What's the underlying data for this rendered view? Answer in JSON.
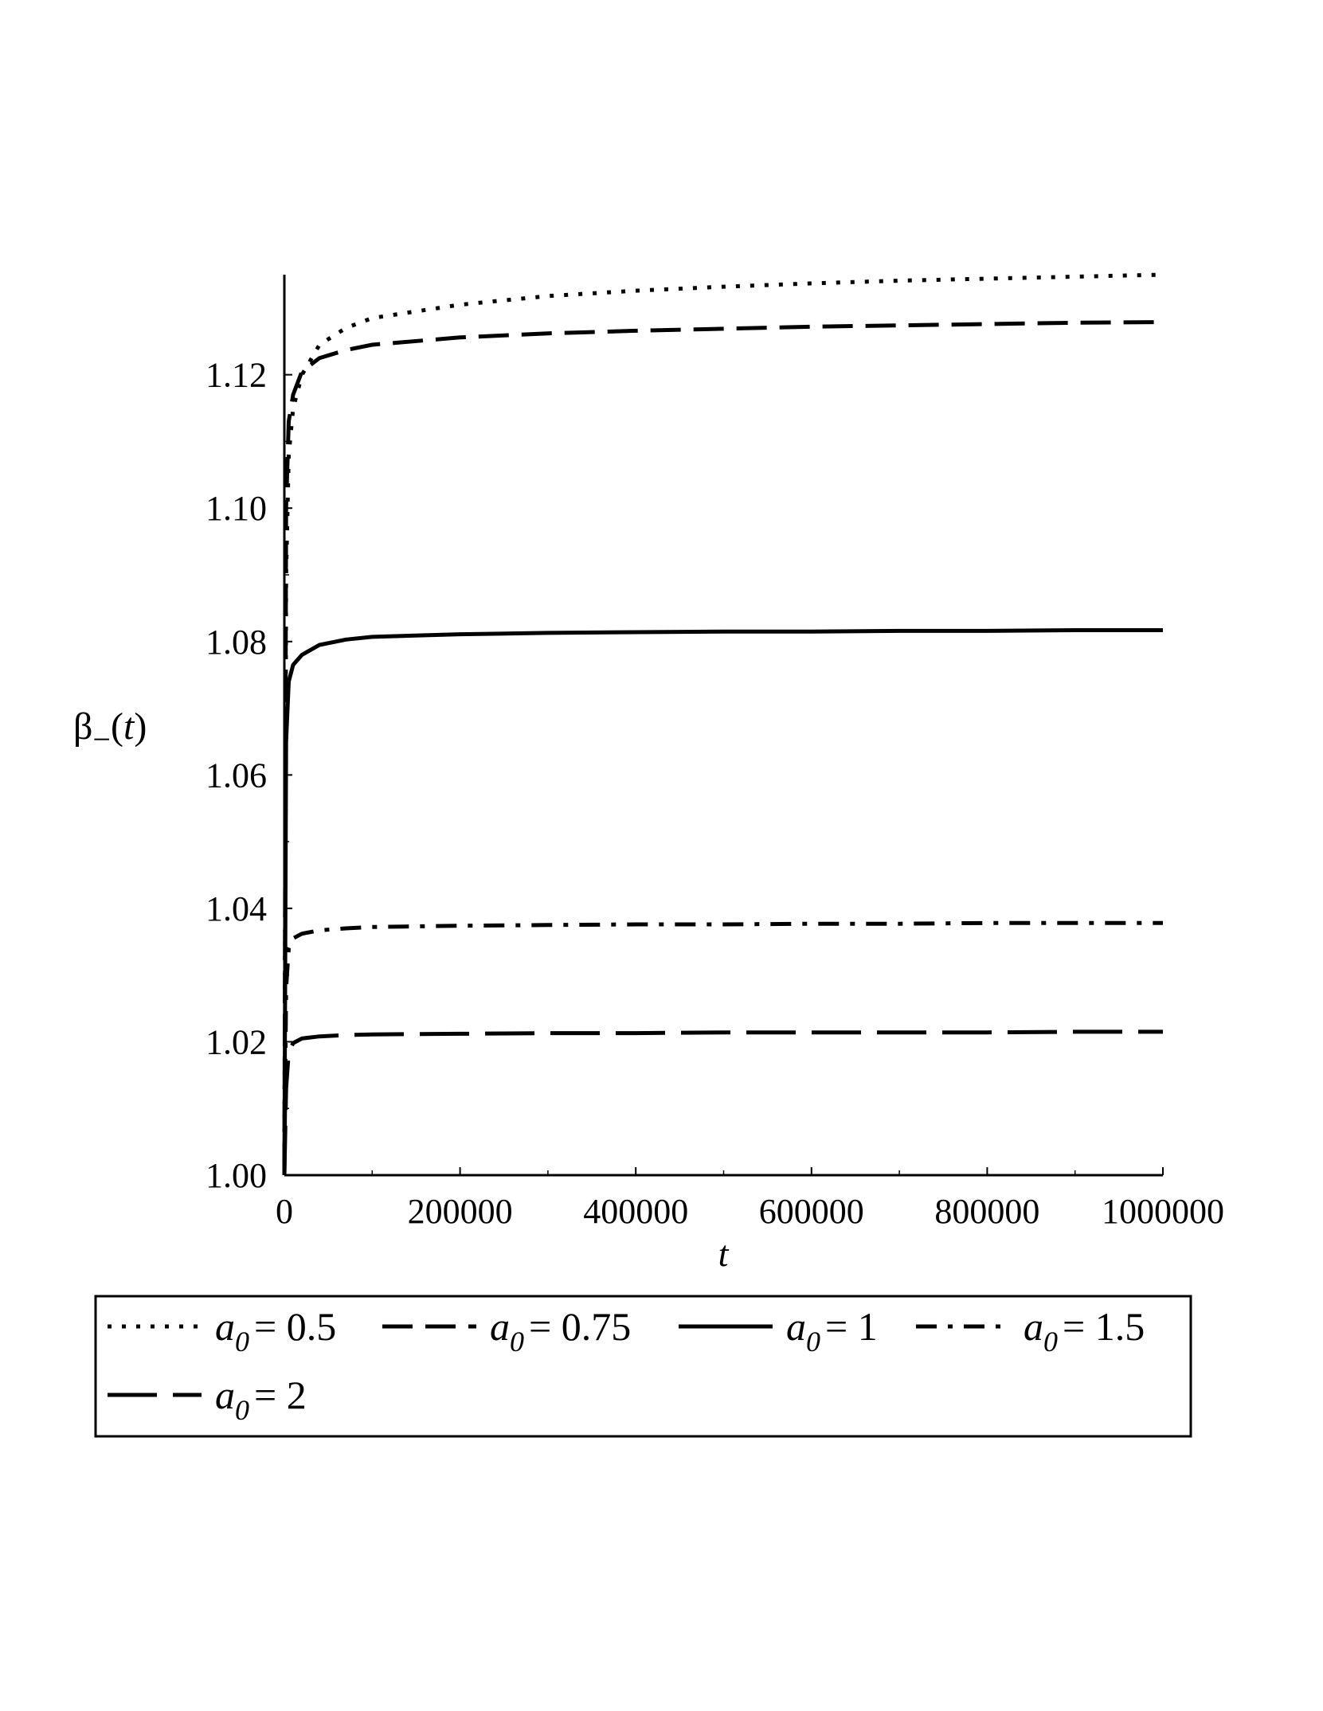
{
  "chart_data": {
    "type": "line",
    "xlabel": "t",
    "ylabel": "β₋(t)",
    "xlim": [
      0,
      1000000
    ],
    "ylim": [
      1.0,
      1.135
    ],
    "xticks": [
      0,
      200000,
      400000,
      600000,
      800000,
      1000000
    ],
    "xtick_labels": [
      "0",
      "200000",
      "400000",
      "600000",
      "800000",
      "1000000"
    ],
    "yticks": [
      1.0,
      1.02,
      1.04,
      1.06,
      1.08,
      1.1,
      1.12
    ],
    "ytick_labels": [
      "1.00",
      "1.02",
      "1.04",
      "1.06",
      "1.08",
      "1.10",
      "1.12"
    ],
    "legend_position": "bottom",
    "series": [
      {
        "name": "a0 = 0.5",
        "label_var": "a",
        "label_sub": "0",
        "label_value": "= 0.5",
        "style": "dotted",
        "x": [
          0,
          2000,
          5000,
          10000,
          20000,
          40000,
          70000,
          100000,
          200000,
          300000,
          400000,
          500000,
          600000,
          700000,
          800000,
          900000,
          1000000
        ],
        "values": [
          1.0,
          1.09,
          1.108,
          1.115,
          1.12,
          1.1245,
          1.127,
          1.1285,
          1.1305,
          1.1318,
          1.1326,
          1.1332,
          1.1337,
          1.1341,
          1.1344,
          1.1347,
          1.135
        ]
      },
      {
        "name": "a0 = 0.75",
        "label_var": "a",
        "label_sub": "0",
        "label_value": "= 0.75",
        "style": "dashed",
        "x": [
          0,
          2000,
          5000,
          10000,
          20000,
          40000,
          70000,
          100000,
          200000,
          300000,
          400000,
          500000,
          600000,
          700000,
          800000,
          900000,
          1000000
        ],
        "values": [
          1.0,
          1.1,
          1.113,
          1.117,
          1.1205,
          1.1225,
          1.1237,
          1.1245,
          1.1256,
          1.1262,
          1.1266,
          1.1269,
          1.1272,
          1.1274,
          1.1276,
          1.1278,
          1.1279
        ]
      },
      {
        "name": "a0 = 1",
        "label_var": "a",
        "label_sub": "0",
        "label_value": "= 1",
        "style": "solid",
        "x": [
          0,
          2000,
          5000,
          10000,
          20000,
          40000,
          70000,
          100000,
          200000,
          300000,
          400000,
          500000,
          600000,
          700000,
          800000,
          900000,
          1000000
        ],
        "values": [
          1.0,
          1.065,
          1.074,
          1.0765,
          1.078,
          1.0795,
          1.0803,
          1.0807,
          1.0811,
          1.0813,
          1.0814,
          1.0815,
          1.0815,
          1.0816,
          1.0816,
          1.0817,
          1.0817
        ]
      },
      {
        "name": "a0 = 1.5",
        "label_var": "a",
        "label_sub": "0",
        "label_value": "= 1.5",
        "style": "dashdot",
        "x": [
          0,
          2000,
          5000,
          10000,
          20000,
          40000,
          70000,
          100000,
          200000,
          300000,
          400000,
          500000,
          600000,
          700000,
          800000,
          900000,
          1000000
        ],
        "values": [
          1.0,
          1.028,
          1.034,
          1.0355,
          1.0362,
          1.0367,
          1.037,
          1.0372,
          1.0374,
          1.0375,
          1.0376,
          1.0376,
          1.0377,
          1.0377,
          1.0378,
          1.0378,
          1.0378
        ]
      },
      {
        "name": "a0 = 2",
        "label_var": "a",
        "label_sub": "0",
        "label_value": "= 2",
        "style": "longdash",
        "x": [
          0,
          2000,
          5000,
          10000,
          20000,
          40000,
          70000,
          100000,
          200000,
          300000,
          400000,
          500000,
          600000,
          700000,
          800000,
          900000,
          1000000
        ],
        "values": [
          1.0,
          1.013,
          1.0185,
          1.0198,
          1.0205,
          1.0208,
          1.021,
          1.0211,
          1.0212,
          1.0213,
          1.0213,
          1.0214,
          1.0214,
          1.0214,
          1.0214,
          1.0215,
          1.0215
        ]
      }
    ]
  }
}
